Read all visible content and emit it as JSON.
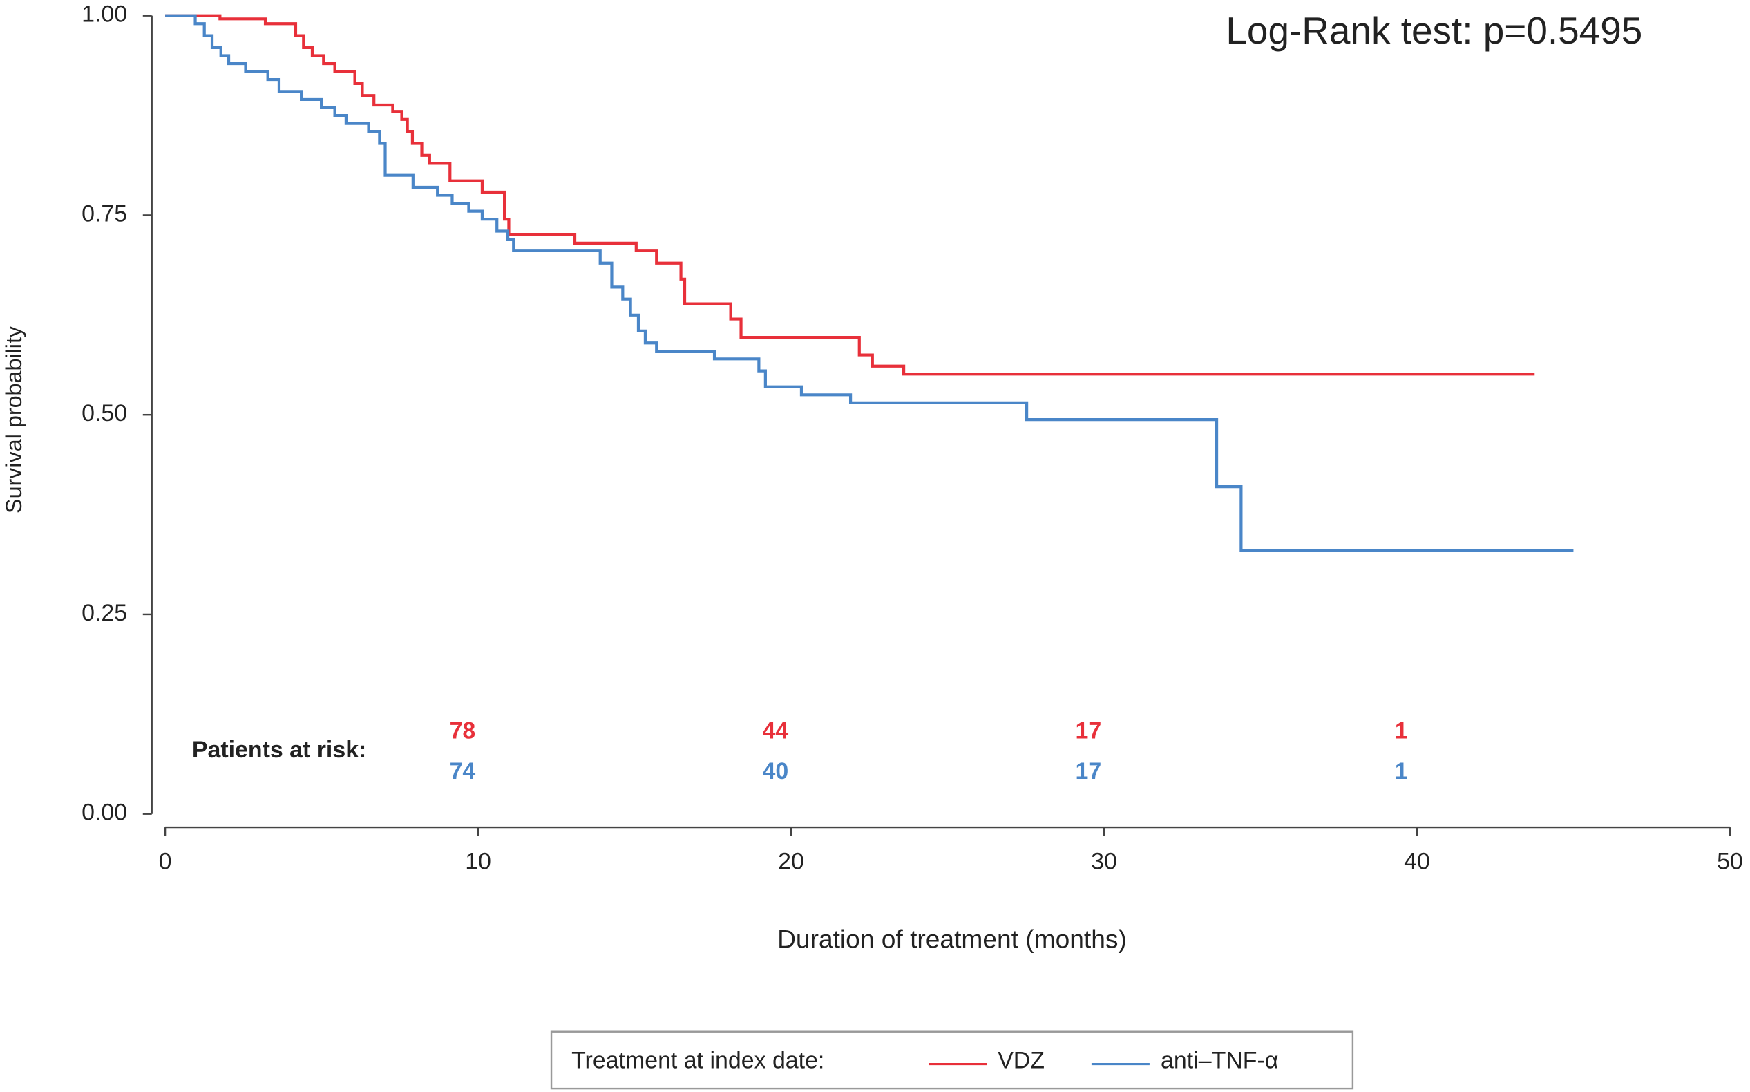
{
  "chart_data": {
    "type": "step",
    "xlabel": "Duration of treatment (months)",
    "ylabel": "Survival probability",
    "annotation": "Log-Rank test: p=0.5495",
    "xlim": [
      0,
      50
    ],
    "ylim": [
      0,
      1
    ],
    "xticks": [
      0,
      10,
      20,
      30,
      40,
      50
    ],
    "yticks": [
      {
        "value": 0,
        "label": "0.00"
      },
      {
        "value": 0.25,
        "label": "0.25"
      },
      {
        "value": 0.5,
        "label": "0.50"
      },
      {
        "value": 0.75,
        "label": "0.75"
      },
      {
        "value": 1,
        "label": "1.00"
      }
    ],
    "legend_title": "Treatment at index date:",
    "legend_position": "bottom",
    "series": [
      {
        "name": "VDZ",
        "color": "#e8303a",
        "x": [
          0,
          1.75,
          3.2,
          4.17,
          4.42,
          4.7,
          5.06,
          5.42,
          6.06,
          6.3,
          6.67,
          7.27,
          7.56,
          7.74,
          7.9,
          8.2,
          8.45,
          9.1,
          10.13,
          10.84,
          10.98,
          13.09,
          15.05,
          15.7,
          16.48,
          16.6,
          18.07,
          18.4,
          22.18,
          22.6,
          23.6,
          43.76
        ],
        "values": [
          1.0,
          0.996,
          0.99,
          0.975,
          0.96,
          0.95,
          0.94,
          0.93,
          0.915,
          0.9,
          0.888,
          0.88,
          0.87,
          0.855,
          0.84,
          0.825,
          0.815,
          0.793,
          0.779,
          0.745,
          0.726,
          0.715,
          0.706,
          0.69,
          0.67,
          0.639,
          0.62,
          0.597,
          0.575,
          0.561,
          0.551,
          0.551
        ]
      },
      {
        "name": "anti–TNF-α",
        "color": "#4a86c8",
        "x": [
          0,
          0.96,
          1.25,
          1.5,
          1.78,
          2.03,
          2.57,
          3.28,
          3.64,
          4.35,
          4.99,
          5.42,
          5.78,
          6.5,
          6.85,
          7.03,
          7.92,
          8.7,
          9.17,
          9.7,
          10.13,
          10.6,
          10.95,
          11.13,
          13.9,
          14.27,
          14.62,
          14.87,
          15.12,
          15.34,
          15.7,
          17.55,
          18.97,
          19.18,
          20.33,
          21.9,
          27.53,
          33.6,
          34.38,
          45.0
        ],
        "values": [
          1.0,
          0.99,
          0.975,
          0.96,
          0.95,
          0.94,
          0.93,
          0.92,
          0.905,
          0.895,
          0.885,
          0.875,
          0.865,
          0.855,
          0.84,
          0.8,
          0.785,
          0.775,
          0.765,
          0.755,
          0.745,
          0.73,
          0.72,
          0.706,
          0.69,
          0.66,
          0.645,
          0.625,
          0.605,
          0.59,
          0.579,
          0.57,
          0.555,
          0.535,
          0.525,
          0.515,
          0.494,
          0.41,
          0.33,
          0.33
        ]
      }
    ],
    "at_risk": {
      "label": "Patients at risk:",
      "times": [
        10,
        20,
        30,
        40
      ],
      "counts": [
        [
          78,
          44,
          17,
          1
        ],
        [
          74,
          40,
          17,
          1
        ]
      ]
    }
  }
}
